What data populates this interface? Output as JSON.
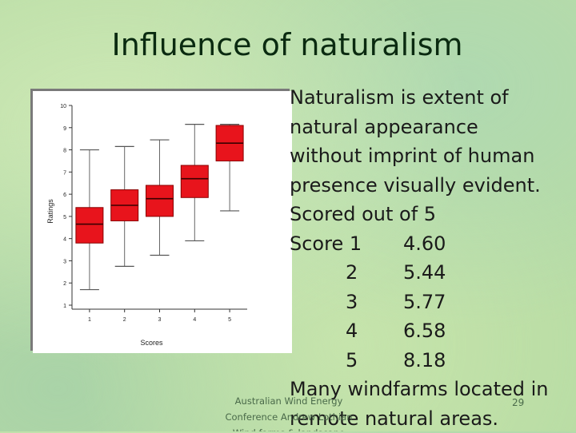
{
  "slide": {
    "title": "Influence of naturalism",
    "lines": [
      "Naturalism is extent of",
      "natural appearance",
      "without imprint of human",
      "presence visually evident.",
      "Scored out of 5"
    ],
    "scores": [
      {
        "label": "Score 1",
        "value": "4.60"
      },
      {
        "label": "2",
        "value": "5.44"
      },
      {
        "label": "3",
        "value": "5.77"
      },
      {
        "label": "4",
        "value": "6.58"
      },
      {
        "label": "5",
        "value": "8.18"
      }
    ],
    "closing_lines": [
      "Many windfarms located in",
      "remote natural areas."
    ],
    "footer": "Australian Wind Energy Conference Andrew Lothian Wind farms & landscape",
    "slide_number": "29"
  },
  "chart_data": {
    "type": "box",
    "xlabel": "Scores",
    "ylabel": "Ratings",
    "categories": [
      "1",
      "2",
      "3",
      "4",
      "5"
    ],
    "ylim": [
      1,
      10
    ],
    "yticks": [
      "1",
      "2",
      "3",
      "4",
      "5",
      "6",
      "7",
      "8",
      "9",
      "10"
    ],
    "box_color": "#e8141c",
    "boxes": [
      {
        "x": "1",
        "min": 1.7,
        "q1": 3.8,
        "median": 4.65,
        "q3": 5.4,
        "max": 8.0
      },
      {
        "x": "2",
        "min": 2.75,
        "q1": 4.8,
        "median": 5.5,
        "q3": 6.2,
        "max": 8.15
      },
      {
        "x": "3",
        "min": 3.25,
        "q1": 5.0,
        "median": 5.8,
        "q3": 6.4,
        "max": 8.45
      },
      {
        "x": "4",
        "min": 3.9,
        "q1": 5.85,
        "median": 6.7,
        "q3": 7.3,
        "max": 9.15
      },
      {
        "x": "5",
        "min": 5.25,
        "q1": 7.5,
        "median": 8.3,
        "q3": 9.1,
        "max": 9.15
      }
    ]
  }
}
